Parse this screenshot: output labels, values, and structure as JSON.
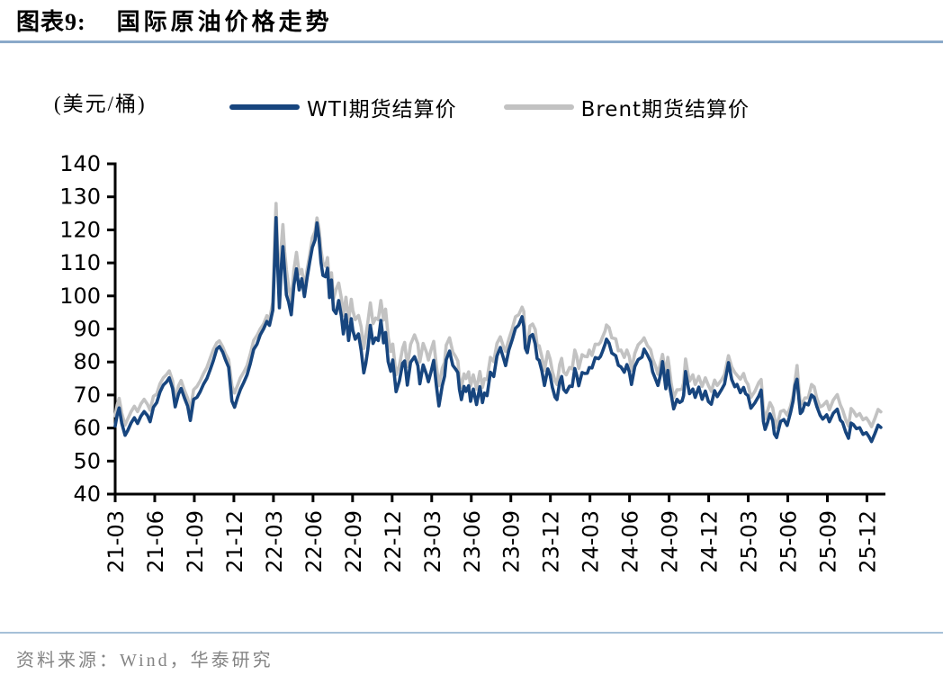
{
  "header": {
    "tag": "图表9:",
    "title": "国际原油价格走势"
  },
  "footer": {
    "source": "资料来源：Wind，华泰研究"
  },
  "colors": {
    "title_rule": "#8aa9c9",
    "footer_rule": "#a6c0d8",
    "footer_text": "#848484",
    "axis": "#000000",
    "wti_line": "#17457e",
    "brent_line": "#c2c2c2"
  },
  "chart_data": {
    "type": "line",
    "title": "国际原油价格走势",
    "unit_label": "(美元/桶)",
    "xlabel": "",
    "ylabel": "美元/桶",
    "grid": false,
    "legend_position": "top",
    "y_axis": {
      "min": 40,
      "max": 140,
      "tick_step": 10
    },
    "x_axis": {
      "unit": "months since 2021-03",
      "tick_interval_months": 3,
      "max_month": 58.4,
      "tick_labels": [
        "21-03",
        "21-06",
        "21-09",
        "21-12",
        "22-03",
        "22-06",
        "22-09",
        "22-12",
        "23-03",
        "23-06",
        "23-09",
        "23-12",
        "24-03",
        "24-06",
        "24-09",
        "24-12",
        "25-03",
        "25-06",
        "25-09",
        "25-12"
      ]
    },
    "series": [
      {
        "name": "WTI期货结算价",
        "color": "#17457e"
      },
      {
        "name": "Brent期货结算价",
        "color": "#c2c2c2"
      }
    ],
    "points_format": [
      "month_offset",
      "wti_usd_per_barrel",
      "brent_usd_per_barrel"
    ],
    "points": [
      [
        0,
        60.6,
        63.7
      ],
      [
        0.15,
        64,
        67
      ],
      [
        0.3,
        66.1,
        69
      ],
      [
        0.5,
        61.5,
        64.5
      ],
      [
        0.75,
        57.8,
        60.9
      ],
      [
        0.95,
        59.2,
        62.7
      ],
      [
        1.2,
        61.5,
        64.9
      ],
      [
        1.45,
        63.1,
        66.6
      ],
      [
        1.7,
        61.4,
        65
      ],
      [
        1.95,
        63.6,
        67.3
      ],
      [
        2.2,
        65,
        68.7
      ],
      [
        2.45,
        63.8,
        67.2
      ],
      [
        2.65,
        61.9,
        65.4
      ],
      [
        2.9,
        66.3,
        69.6
      ],
      [
        3.15,
        67.7,
        70.3
      ],
      [
        3.4,
        70.9,
        73.4
      ],
      [
        3.65,
        73,
        75.2
      ],
      [
        3.9,
        74,
        76.2
      ],
      [
        4.1,
        75.2,
        77.3
      ],
      [
        4.35,
        72,
        74.3
      ],
      [
        4.55,
        66.4,
        68.6
      ],
      [
        4.8,
        70.3,
        72.8
      ],
      [
        5,
        72,
        74.4
      ],
      [
        5.25,
        69.1,
        71.4
      ],
      [
        5.5,
        66.6,
        69
      ],
      [
        5.7,
        62.3,
        65.2
      ],
      [
        5.95,
        68.7,
        71.6
      ],
      [
        6.2,
        69.3,
        72.6
      ],
      [
        6.45,
        71,
        74.3
      ],
      [
        6.7,
        73.3,
        76.5
      ],
      [
        6.95,
        75,
        78.3
      ],
      [
        7.2,
        77.6,
        81.1
      ],
      [
        7.45,
        80.5,
        83.8
      ],
      [
        7.7,
        83.9,
        85.8
      ],
      [
        7.9,
        84.7,
        86.4
      ],
      [
        8.15,
        83,
        84.6
      ],
      [
        8.35,
        80.8,
        82.6
      ],
      [
        8.6,
        78.4,
        80.7
      ],
      [
        8.85,
        68.2,
        72.7
      ],
      [
        9.05,
        66.3,
        70.6
      ],
      [
        9.3,
        69.5,
        73.1
      ],
      [
        9.5,
        71.7,
        75.2
      ],
      [
        9.75,
        73.8,
        76.9
      ],
      [
        10,
        76.1,
        78.9
      ],
      [
        10.25,
        79.5,
        82.4
      ],
      [
        10.5,
        83.8,
        86.5
      ],
      [
        10.75,
        85.4,
        88
      ],
      [
        11,
        88.2,
        90
      ],
      [
        11.25,
        90,
        91.5
      ],
      [
        11.5,
        92.3,
        94
      ],
      [
        11.7,
        91.1,
        92.8
      ],
      [
        11.95,
        95.7,
        98
      ],
      [
        12.1,
        112,
        118
      ],
      [
        12.2,
        123.7,
        128
      ],
      [
        12.32,
        109,
        113
      ],
      [
        12.45,
        96.4,
        101.9
      ],
      [
        12.6,
        109.3,
        115.5
      ],
      [
        12.72,
        114.9,
        121.6
      ],
      [
        12.85,
        107.8,
        113.5
      ],
      [
        12.98,
        100.3,
        107.9
      ],
      [
        13.15,
        98.2,
        102.9
      ],
      [
        13.35,
        94.3,
        98.5
      ],
      [
        13.55,
        103.2,
        107.8
      ],
      [
        13.75,
        108.2,
        113.2
      ],
      [
        13.95,
        101.8,
        106.6
      ],
      [
        14.15,
        105.2,
        108
      ],
      [
        14.35,
        99.8,
        102.5
      ],
      [
        14.55,
        105.5,
        107.9
      ],
      [
        14.75,
        110.3,
        112.4
      ],
      [
        14.95,
        114.7,
        117.6
      ],
      [
        15.15,
        116.9,
        119.5
      ],
      [
        15.3,
        122.1,
        123.6
      ],
      [
        15.45,
        117.6,
        120.4
      ],
      [
        15.6,
        110.2,
        113.9
      ],
      [
        15.75,
        106.2,
        110
      ],
      [
        15.95,
        105.8,
        109
      ],
      [
        16.1,
        108.4,
        111.6
      ],
      [
        16.25,
        99.5,
        102.8
      ],
      [
        16.4,
        104.8,
        107
      ],
      [
        16.55,
        95.8,
        99.1
      ],
      [
        16.75,
        94.7,
        102
      ],
      [
        16.95,
        98.6,
        103.9
      ],
      [
        17.15,
        93.9,
        99.3
      ],
      [
        17.3,
        88.5,
        94.1
      ],
      [
        17.5,
        94.3,
        99.6
      ],
      [
        17.7,
        86.5,
        92.3
      ],
      [
        17.9,
        93.1,
        99
      ],
      [
        18.02,
        89.6,
        95.6
      ],
      [
        18.2,
        86.9,
        92.8
      ],
      [
        18.45,
        88.5,
        94.1
      ],
      [
        18.65,
        83.5,
        90.6
      ],
      [
        18.85,
        76.7,
        84.1
      ],
      [
        19,
        79.5,
        88
      ],
      [
        19.15,
        83.6,
        91.8
      ],
      [
        19.35,
        91.1,
        97.9
      ],
      [
        19.55,
        85.6,
        91.6
      ],
      [
        19.75,
        87.3,
        93.3
      ],
      [
        19.95,
        86.5,
        92.8
      ],
      [
        20.15,
        92.6,
        98.6
      ],
      [
        20.35,
        85.8,
        92.7
      ],
      [
        20.5,
        88.9,
        96
      ],
      [
        20.7,
        80.1,
        87.6
      ],
      [
        20.9,
        77.2,
        83.2
      ],
      [
        21.05,
        80.6,
        85.4
      ],
      [
        21.3,
        71,
        76.1
      ],
      [
        21.55,
        74.3,
        79
      ],
      [
        21.8,
        79.6,
        84.2
      ],
      [
        21.95,
        80.3,
        85.9
      ],
      [
        22.15,
        73,
        78.6
      ],
      [
        22.4,
        79.9,
        85.3
      ],
      [
        22.7,
        81.6,
        88.2
      ],
      [
        22.95,
        78.9,
        85.5
      ],
      [
        23.1,
        73.4,
        80
      ],
      [
        23.35,
        79.1,
        85.6
      ],
      [
        23.6,
        76.3,
        83
      ],
      [
        23.75,
        74,
        80.6
      ],
      [
        23.95,
        77,
        83.6
      ],
      [
        24.15,
        80.5,
        86.2
      ],
      [
        24.35,
        73,
        79
      ],
      [
        24.55,
        66.7,
        72.8
      ],
      [
        24.8,
        72.8,
        78.1
      ],
      [
        24.98,
        75.7,
        79.9
      ],
      [
        25.1,
        80.7,
        85.1
      ],
      [
        25.35,
        83.3,
        87.3
      ],
      [
        25.6,
        79,
        83
      ],
      [
        25.8,
        77.9,
        81.7
      ],
      [
        25.98,
        76.8,
        80.3
      ],
      [
        26.1,
        71.7,
        75.3
      ],
      [
        26.25,
        68.6,
        72.3
      ],
      [
        26.45,
        72.6,
        76.4
      ],
      [
        26.6,
        71.1,
        75
      ],
      [
        26.8,
        72.8,
        77
      ],
      [
        26.95,
        68.1,
        72.7
      ],
      [
        27.15,
        71.8,
        76.1
      ],
      [
        27.4,
        67.1,
        71.8
      ],
      [
        27.65,
        72.5,
        77.1
      ],
      [
        27.85,
        67.7,
        72.3
      ],
      [
        28,
        70.6,
        74.9
      ],
      [
        28.2,
        69.8,
        74.7
      ],
      [
        28.45,
        76.9,
        81.4
      ],
      [
        28.7,
        75.6,
        80.1
      ],
      [
        28.95,
        81.8,
        85.6
      ],
      [
        29.2,
        84.4,
        87.6
      ],
      [
        29.45,
        81,
        84.5
      ],
      [
        29.6,
        78.9,
        83.2
      ],
      [
        29.85,
        83.6,
        86.9
      ],
      [
        30.1,
        86.7,
        90
      ],
      [
        30.35,
        90.2,
        93.7
      ],
      [
        30.6,
        91.2,
        94.3
      ],
      [
        30.85,
        93.7,
        96.6
      ],
      [
        30.98,
        90.8,
        95.3
      ],
      [
        31.1,
        84.2,
        85.8
      ],
      [
        31.25,
        82.8,
        84.6
      ],
      [
        31.45,
        87.7,
        90.9
      ],
      [
        31.65,
        88.3,
        91.5
      ],
      [
        31.85,
        85.5,
        89.8
      ],
      [
        32,
        81,
        85
      ],
      [
        32.15,
        80.5,
        84.9
      ],
      [
        32.35,
        77.3,
        81.6
      ],
      [
        32.55,
        72.9,
        77.4
      ],
      [
        32.8,
        77.9,
        83.1
      ],
      [
        32.98,
        76,
        80.9
      ],
      [
        33.15,
        72.3,
        77.1
      ],
      [
        33.35,
        69.4,
        74.3
      ],
      [
        33.5,
        68.6,
        73.2
      ],
      [
        33.7,
        73.9,
        79.2
      ],
      [
        33.85,
        75.6,
        81.1
      ],
      [
        34,
        71.7,
        77
      ],
      [
        34.2,
        70.8,
        76.1
      ],
      [
        34.45,
        72.7,
        78.3
      ],
      [
        34.65,
        72.6,
        77.9
      ],
      [
        34.85,
        78,
        83.6
      ],
      [
        35,
        75.9,
        81.7
      ],
      [
        35.15,
        72.8,
        78
      ],
      [
        35.4,
        76.8,
        82.2
      ],
      [
        35.6,
        76.5,
        81.7
      ],
      [
        35.8,
        76.6,
        81.6
      ],
      [
        35.95,
        78.3,
        83.6
      ],
      [
        36.15,
        78.2,
        82
      ],
      [
        36.4,
        81.3,
        85.4
      ],
      [
        36.65,
        81,
        85.3
      ],
      [
        36.8,
        81.7,
        86
      ],
      [
        36.95,
        83.2,
        87.5
      ],
      [
        37.15,
        85.4,
        89.4
      ],
      [
        37.25,
        86.9,
        91.2
      ],
      [
        37.45,
        85.7,
        90.4
      ],
      [
        37.65,
        82.7,
        87.3
      ],
      [
        37.95,
        81.9,
        87
      ],
      [
        38.15,
        79,
        83.4
      ],
      [
        38.35,
        78.5,
        83.6
      ],
      [
        38.6,
        76.9,
        81.4
      ],
      [
        38.8,
        79.2,
        83.6
      ],
      [
        38.98,
        77,
        81.6
      ],
      [
        39.15,
        73.2,
        77.5
      ],
      [
        39.4,
        78.6,
        82.6
      ],
      [
        39.65,
        80.7,
        85.2
      ],
      [
        39.95,
        81.5,
        86.4
      ],
      [
        40.1,
        83.9,
        87.3
      ],
      [
        40.35,
        82.2,
        85
      ],
      [
        40.6,
        80.1,
        83.7
      ],
      [
        40.75,
        77,
        81
      ],
      [
        40.98,
        74.7,
        78.6
      ],
      [
        41.15,
        72.9,
        76.3
      ],
      [
        41.35,
        76.2,
        79.7
      ],
      [
        41.5,
        80.1,
        82.3
      ],
      [
        41.75,
        71.9,
        76.1
      ],
      [
        41.9,
        77.4,
        81.4
      ],
      [
        42,
        73.6,
        78.8
      ],
      [
        42.15,
        70.3,
        73.8
      ],
      [
        42.35,
        65.8,
        69.2
      ],
      [
        42.6,
        68.7,
        71.6
      ],
      [
        42.8,
        67.7,
        71.6
      ],
      [
        42.98,
        68.2,
        71.8
      ],
      [
        43.1,
        69.8,
        73.6
      ],
      [
        43.25,
        77.1,
        80.9
      ],
      [
        43.4,
        73.6,
        77.2
      ],
      [
        43.55,
        70.4,
        74.2
      ],
      [
        43.8,
        71.8,
        76.1
      ],
      [
        43.98,
        69.3,
        73.2
      ],
      [
        44.25,
        72.4,
        75.6
      ],
      [
        44.5,
        68.7,
        72.6
      ],
      [
        44.75,
        71.2,
        75.2
      ],
      [
        44.98,
        68,
        72.9
      ],
      [
        45.2,
        67.2,
        71.1
      ],
      [
        45.45,
        71.3,
        74.5
      ],
      [
        45.65,
        69.5,
        72.9
      ],
      [
        45.98,
        71.7,
        74.6
      ],
      [
        46.2,
        73.3,
        76.2
      ],
      [
        46.5,
        79.8,
        81.9
      ],
      [
        46.75,
        74.7,
        78.5
      ],
      [
        46.98,
        72.5,
        76.8
      ],
      [
        47.15,
        73.2,
        76
      ],
      [
        47.4,
        70.7,
        74.8
      ],
      [
        47.65,
        72.3,
        76.5
      ],
      [
        47.8,
        70.4,
        74.4
      ],
      [
        47.98,
        69.8,
        73.2
      ],
      [
        48.2,
        66,
        69.3
      ],
      [
        48.5,
        67.6,
        71.1
      ],
      [
        48.8,
        69.7,
        73.8
      ],
      [
        48.98,
        71.5,
        74.7
      ],
      [
        49.15,
        62,
        65.6
      ],
      [
        49.28,
        59.6,
        62.8
      ],
      [
        49.45,
        61.5,
        64.9
      ],
      [
        49.65,
        64.3,
        67.7
      ],
      [
        49.85,
        62.3,
        66.1
      ],
      [
        49.98,
        58.2,
        63.1
      ],
      [
        50.15,
        57.1,
        60.2
      ],
      [
        50.45,
        62,
        65
      ],
      [
        50.7,
        62.6,
        65.4
      ],
      [
        50.95,
        60.8,
        63.9
      ],
      [
        51.2,
        64.6,
        66.5
      ],
      [
        51.4,
        68.2,
        69.8
      ],
      [
        51.55,
        73,
        74.2
      ],
      [
        51.7,
        74.8,
        78.9
      ],
      [
        51.85,
        68.5,
        71.5
      ],
      [
        51.95,
        64.4,
        67.1
      ],
      [
        52.1,
        65.1,
        67.6
      ],
      [
        52.3,
        67.5,
        69.1
      ],
      [
        52.55,
        67,
        69.2
      ],
      [
        52.8,
        70,
        73.2
      ],
      [
        53,
        69.3,
        72.5
      ],
      [
        53.2,
        66.5,
        69
      ],
      [
        53.45,
        63.9,
        66.4
      ],
      [
        53.65,
        62.7,
        66.8
      ],
      [
        53.95,
        64,
        68.1
      ],
      [
        54.15,
        61.9,
        65.5
      ],
      [
        54.45,
        64.5,
        68.5
      ],
      [
        54.75,
        65.7,
        70.1
      ],
      [
        54.98,
        62.4,
        67
      ],
      [
        55.15,
        61.7,
        65.5
      ],
      [
        55.4,
        58.7,
        62.4
      ],
      [
        55.6,
        56.9,
        60.6
      ],
      [
        55.8,
        61.5,
        65.9
      ],
      [
        55.98,
        61,
        65.1
      ],
      [
        56.2,
        59.8,
        63.6
      ],
      [
        56.45,
        60.1,
        64.4
      ],
      [
        56.7,
        58.1,
        62.5
      ],
      [
        56.95,
        58.6,
        63.1
      ],
      [
        57.15,
        57.4,
        61.9
      ],
      [
        57.35,
        55.9,
        60.4
      ],
      [
        57.6,
        58.3,
        62.9
      ],
      [
        57.85,
        60.9,
        65.6
      ],
      [
        58.05,
        60.2,
        64.9
      ]
    ]
  }
}
